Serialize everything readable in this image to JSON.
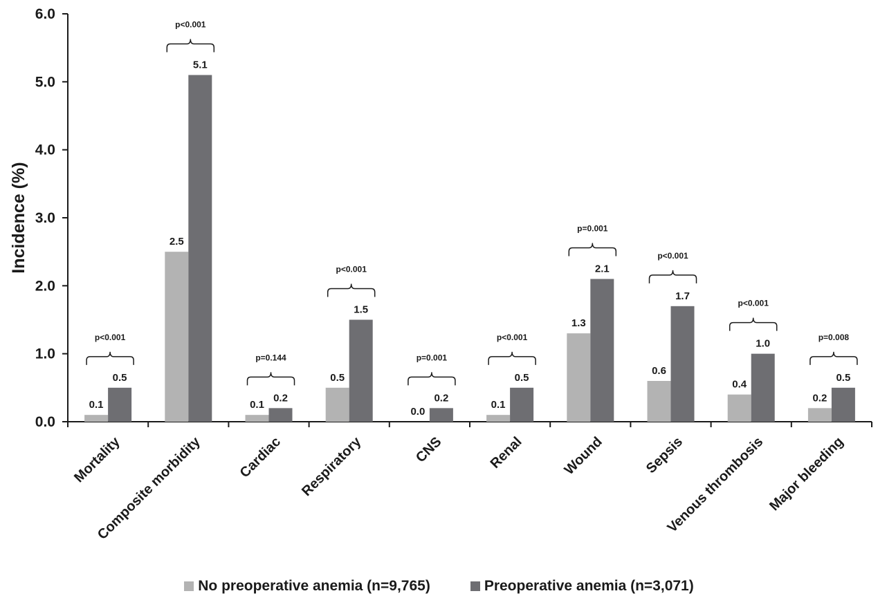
{
  "chart_data": {
    "type": "bar",
    "title": "",
    "xlabel": "",
    "ylabel": "Incidence (%)",
    "ylim": [
      0,
      6
    ],
    "yticks": [
      "0.0",
      "1.0",
      "2.0",
      "3.0",
      "4.0",
      "5.0",
      "6.0"
    ],
    "grid": false,
    "legend_position": "bottom",
    "categories": [
      "Mortality",
      "Composite morbidity",
      "Cardiac",
      "Respiratory",
      "CNS",
      "Renal",
      "Wound",
      "Sepsis",
      "Venous thrombosis",
      "Major bleeding"
    ],
    "series": [
      {
        "name": "No preoperative anemia (n=9,765)",
        "color": "#b3b3b3",
        "values": [
          0.1,
          2.5,
          0.1,
          0.5,
          0.0,
          0.1,
          1.3,
          0.6,
          0.4,
          0.2
        ],
        "labels": [
          "0.1",
          "2.5",
          "0.1",
          "0.5",
          "0.0",
          "0.1",
          "1.3",
          "0.6",
          "0.4",
          "0.2"
        ]
      },
      {
        "name": "Preoperative anemia (n=3,071)",
        "color": "#6e6e72",
        "values": [
          0.5,
          5.1,
          0.2,
          1.5,
          0.2,
          0.5,
          2.1,
          1.7,
          1.0,
          0.5
        ],
        "labels": [
          "0.5",
          "5.1",
          "0.2",
          "1.5",
          "0.2",
          "0.5",
          "2.1",
          "1.7",
          "1.0",
          "0.5"
        ]
      }
    ],
    "p_values": [
      "p<0.001",
      "p<0.001",
      "p=0.144",
      "p<0.001",
      "p=0.001",
      "p<0.001",
      "p=0.001",
      "p<0.001",
      "p<0.001",
      "p=0.008"
    ]
  }
}
